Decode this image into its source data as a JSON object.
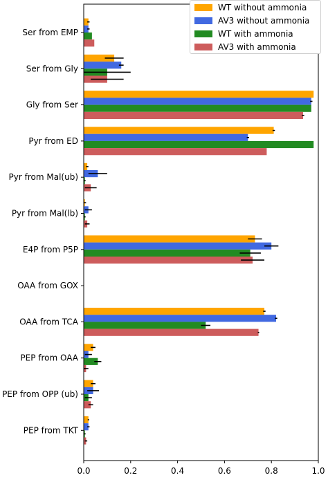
{
  "chart_data": {
    "type": "bar",
    "orientation": "horizontal",
    "categories": [
      "Ser from EMP",
      "Ser from Gly",
      "Gly from Ser",
      "Pyr from ED",
      "Pyr from Mal(ub)",
      "Pyr from Mal(lb)",
      "E4P from P5P",
      "OAA from GOX",
      "OAA from TCA",
      "PEP from OAA",
      "PEP from OPP (ub)",
      "PEP from TKT"
    ],
    "series": [
      {
        "name": "WT without ammonia",
        "color": "#FFA500",
        "values": [
          0.02,
          0.13,
          0.98,
          0.81,
          0.015,
          0.005,
          0.73,
          0.0,
          0.77,
          0.04,
          0.04,
          0.02
        ],
        "errors": [
          0.005,
          0.04,
          0.0,
          0.005,
          0.005,
          0.005,
          0.03,
          0.0,
          0.005,
          0.01,
          0.01,
          0.003
        ]
      },
      {
        "name": "AV3 without ammonia",
        "color": "#4169E1",
        "values": [
          0.02,
          0.16,
          0.97,
          0.7,
          0.06,
          0.02,
          0.8,
          0.0,
          0.82,
          0.02,
          0.04,
          0.02
        ],
        "errors": [
          0.005,
          0.01,
          0.005,
          0.005,
          0.04,
          0.015,
          0.03,
          0.0,
          0.005,
          0.015,
          0.025,
          0.005
        ]
      },
      {
        "name": "WT with ammonia",
        "color": "#228B22",
        "values": [
          0.035,
          0.1,
          0.97,
          0.98,
          0.005,
          0.005,
          0.71,
          0.0,
          0.52,
          0.06,
          0.02,
          0.005
        ],
        "errors": [
          0.0,
          0.1,
          0.0,
          0.0,
          0.003,
          0.003,
          0.045,
          0.0,
          0.02,
          0.015,
          0.015,
          0.003
        ]
      },
      {
        "name": "AV3 with ammonia",
        "color": "#CD5C5C",
        "values": [
          0.045,
          0.1,
          0.935,
          0.78,
          0.03,
          0.015,
          0.72,
          0.0,
          0.745,
          0.01,
          0.03,
          0.01
        ],
        "errors": [
          0.0,
          0.07,
          0.005,
          0.0,
          0.025,
          0.01,
          0.05,
          0.0,
          0.003,
          0.01,
          0.01,
          0.005
        ]
      }
    ],
    "xlim": [
      0.0,
      1.0
    ],
    "xticks": [
      0.0,
      0.2,
      0.4,
      0.6,
      0.8,
      1.0
    ],
    "xtick_labels": [
      "0.0",
      "0.2",
      "0.4",
      "0.6",
      "0.8",
      "1.0"
    ],
    "title": "",
    "xlabel": "",
    "ylabel": "",
    "grid": false,
    "legend_position": "top-right"
  }
}
